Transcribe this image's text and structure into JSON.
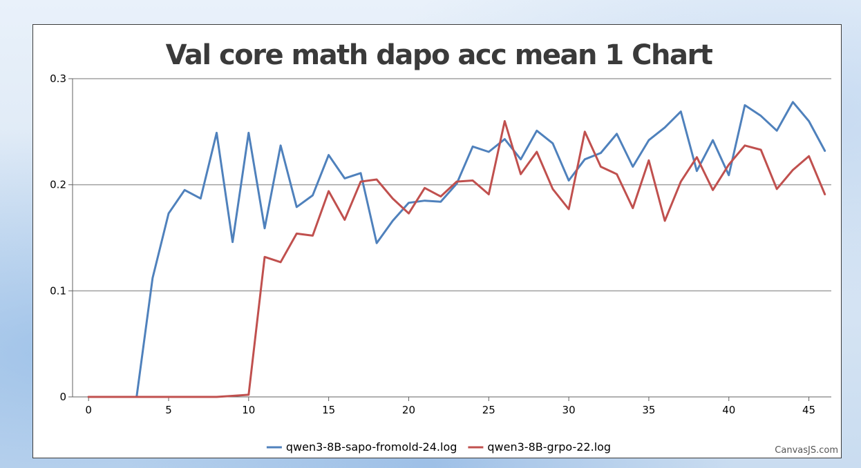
{
  "credit": "CanvasJS.com",
  "chart_data": {
    "type": "line",
    "title": "Val core math dapo acc mean 1 Chart",
    "xlabel": "",
    "ylabel": "",
    "xlim": [
      -1,
      46.4
    ],
    "ylim": [
      0,
      0.3
    ],
    "x_ticks": [
      0,
      5,
      10,
      15,
      20,
      25,
      30,
      35,
      40,
      45
    ],
    "y_ticks": [
      0,
      0.1,
      0.2,
      0.3
    ],
    "y_tick_labels": [
      "0",
      "0.1",
      "0.2",
      "0.3"
    ],
    "grid": "horizontal",
    "legend_position": "bottom",
    "series": [
      {
        "name": "qwen3-8B-sapo-fromold-24.log",
        "color": "#4f81bc",
        "x": [
          0,
          1,
          2,
          3,
          4,
          5,
          6,
          7,
          8,
          9,
          10,
          11,
          12,
          13,
          14,
          15,
          16,
          17,
          18,
          19,
          20,
          21,
          22,
          23,
          24,
          25,
          26,
          27,
          28,
          29,
          30,
          31,
          32,
          33,
          34,
          35,
          36,
          37,
          38,
          39,
          40,
          41,
          42,
          43,
          44,
          45,
          46
        ],
        "values": [
          0,
          0,
          0,
          0,
          0.112,
          0.173,
          0.195,
          0.187,
          0.249,
          0.146,
          0.249,
          0.159,
          0.237,
          0.179,
          0.19,
          0.228,
          0.206,
          0.211,
          0.145,
          0.166,
          0.183,
          0.185,
          0.184,
          0.201,
          0.236,
          0.231,
          0.243,
          0.224,
          0.251,
          0.239,
          0.204,
          0.224,
          0.23,
          0.248,
          0.217,
          0.242,
          0.254,
          0.269,
          0.213,
          0.242,
          0.209,
          0.275,
          0.265,
          0.251,
          0.278,
          0.26,
          0.232
        ]
      },
      {
        "name": "qwen3-8B-grpo-22.log",
        "color": "#c0504e",
        "x": [
          0,
          1,
          2,
          3,
          4,
          5,
          6,
          7,
          8,
          9,
          10,
          11,
          12,
          13,
          14,
          15,
          16,
          17,
          18,
          19,
          20,
          21,
          22,
          23,
          24,
          25,
          26,
          27,
          28,
          29,
          30,
          31,
          32,
          33,
          34,
          35,
          36,
          37,
          38,
          39,
          40,
          41,
          42,
          43,
          44,
          45,
          46
        ],
        "values": [
          0,
          0,
          0,
          0,
          0,
          0,
          0,
          0,
          0,
          0.001,
          0.002,
          0.132,
          0.127,
          0.154,
          0.152,
          0.194,
          0.167,
          0.203,
          0.205,
          0.187,
          0.173,
          0.197,
          0.189,
          0.203,
          0.204,
          0.191,
          0.26,
          0.21,
          0.231,
          0.196,
          0.177,
          0.25,
          0.217,
          0.21,
          0.178,
          0.223,
          0.166,
          0.203,
          0.226,
          0.195,
          0.219,
          0.237,
          0.233,
          0.196,
          0.214,
          0.227,
          0.191
        ]
      }
    ]
  }
}
